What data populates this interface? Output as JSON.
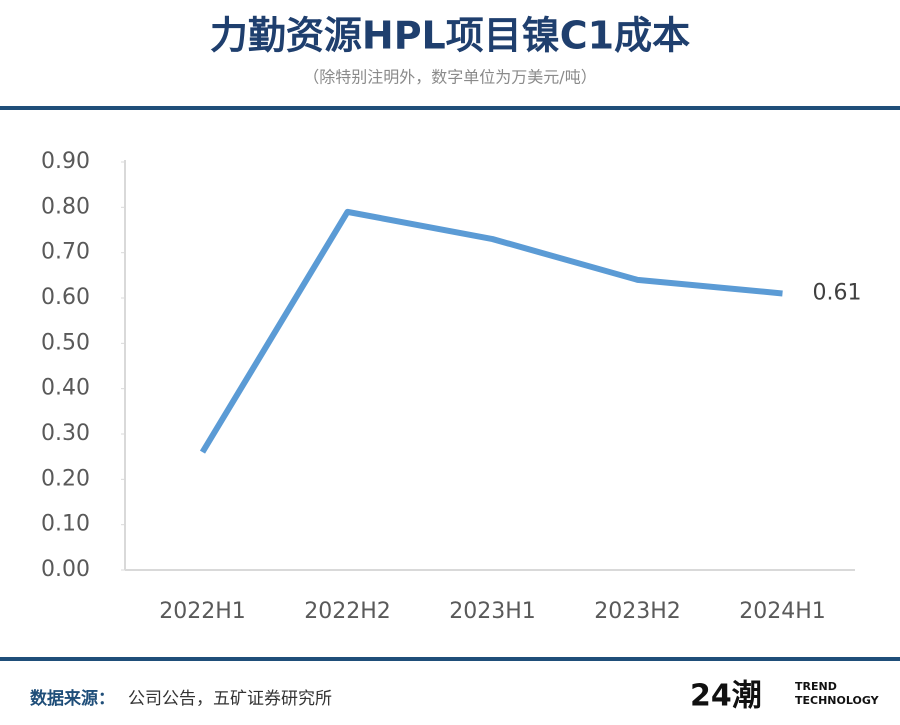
{
  "chart_data": {
    "type": "line",
    "title": "力勤资源HPL项目镍C1成本",
    "subtitle": "（除特别注明外，数字单位为万美元/吨）",
    "categories": [
      "2022H1",
      "2022H2",
      "2023H1",
      "2023H2",
      "2024H1"
    ],
    "series": [
      {
        "name": "C1成本",
        "color": "#5b9bd5",
        "values": [
          0.26,
          0.79,
          0.73,
          0.64,
          0.61
        ],
        "value_labels": [
          null,
          null,
          null,
          null,
          "0.61"
        ]
      }
    ],
    "ylim": [
      0,
      0.9
    ],
    "yticks": [
      {
        "value": 0,
        "label": "0.00"
      },
      {
        "value": 0.1,
        "label": "0.10"
      },
      {
        "value": 0.2,
        "label": "0.20"
      },
      {
        "value": 0.3,
        "label": "0.30"
      },
      {
        "value": 0.4,
        "label": "0.40"
      },
      {
        "value": 0.5,
        "label": "0.50"
      },
      {
        "value": 0.6,
        "label": "0.60"
      },
      {
        "value": 0.7,
        "label": "0.70"
      },
      {
        "value": 0.8,
        "label": "0.80"
      },
      {
        "value": 0.9,
        "label": "0.90"
      }
    ],
    "grid": false,
    "source_label": "数据来源：",
    "source": "公司公告，五矿证券研究所",
    "brand": "24潮",
    "brand_sub": [
      "TREND",
      "TECHNOLOGY"
    ]
  }
}
